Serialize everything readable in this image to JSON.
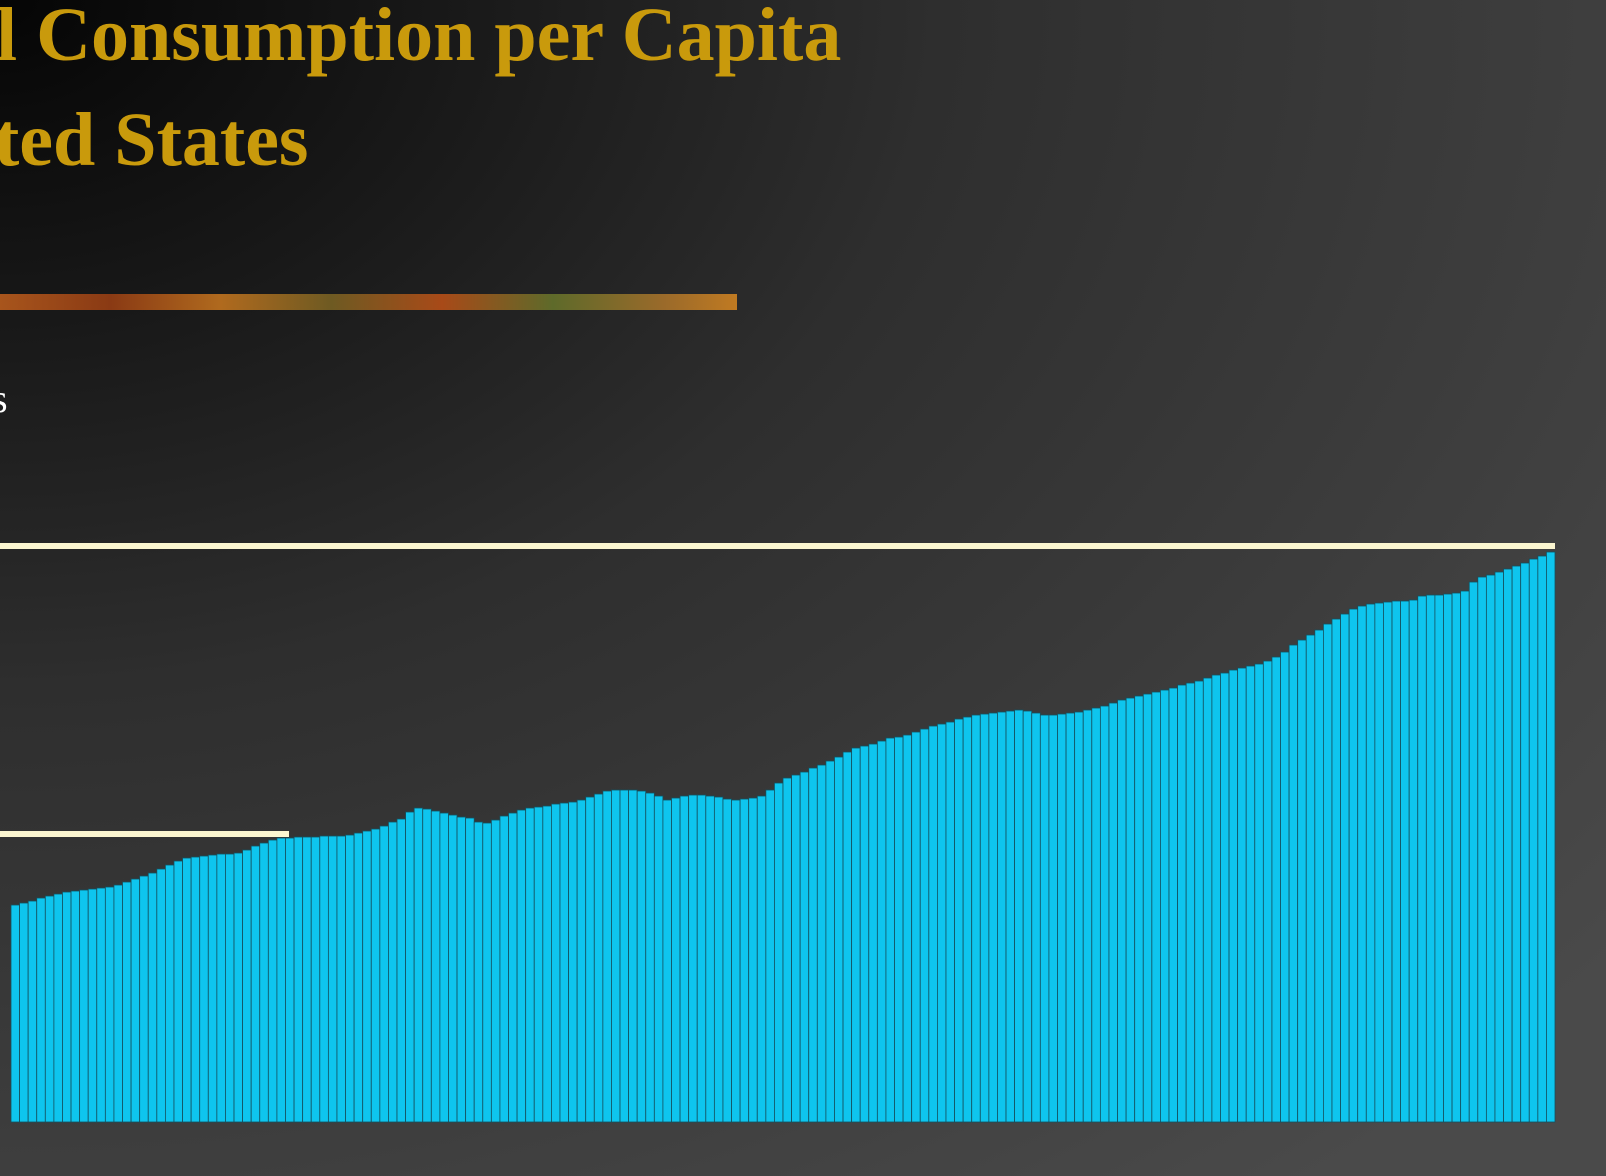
{
  "slide": {
    "title_lines": [
      "l Consumption per Capita",
      "ted States"
    ],
    "body_text": "s"
  },
  "chart_data": {
    "type": "bar",
    "color": "#0ec5ee",
    "ylim": [
      0,
      600
    ],
    "values": [
      217,
      219,
      221,
      224,
      226,
      228,
      230,
      231,
      232,
      233,
      234,
      235,
      237,
      240,
      243,
      246,
      249,
      253,
      257,
      261,
      264,
      265,
      266,
      267,
      268,
      268,
      269,
      272,
      276,
      279,
      282,
      284,
      284,
      285,
      285,
      285,
      286,
      286,
      286,
      287,
      289,
      291,
      293,
      296,
      300,
      303,
      310,
      314,
      313,
      311,
      309,
      307,
      305,
      304,
      300,
      299,
      302,
      306,
      309,
      312,
      314,
      315,
      316,
      318,
      319,
      320,
      322,
      325,
      328,
      331,
      332,
      332,
      332,
      331,
      329,
      326,
      322,
      324,
      326,
      327,
      327,
      326,
      325,
      323,
      322,
      323,
      324,
      326,
      332,
      339,
      344,
      347,
      350,
      354,
      357,
      361,
      365,
      370,
      374,
      376,
      378,
      381,
      384,
      385,
      387,
      390,
      393,
      396,
      398,
      400,
      403,
      405,
      407,
      408,
      409,
      410,
      411,
      412,
      411,
      409,
      407,
      407,
      408,
      409,
      410,
      412,
      414,
      416,
      419,
      422,
      424,
      426,
      428,
      430,
      432,
      434,
      437,
      439,
      441,
      444,
      447,
      449,
      452,
      454,
      456,
      458,
      461,
      465,
      470,
      477,
      482,
      487,
      492,
      498,
      503,
      508,
      513,
      516,
      518,
      519,
      520,
      521,
      521,
      522,
      526,
      527,
      527,
      528,
      529,
      531,
      540,
      545,
      547,
      550,
      553,
      556,
      559,
      563,
      566,
      570
    ]
  }
}
